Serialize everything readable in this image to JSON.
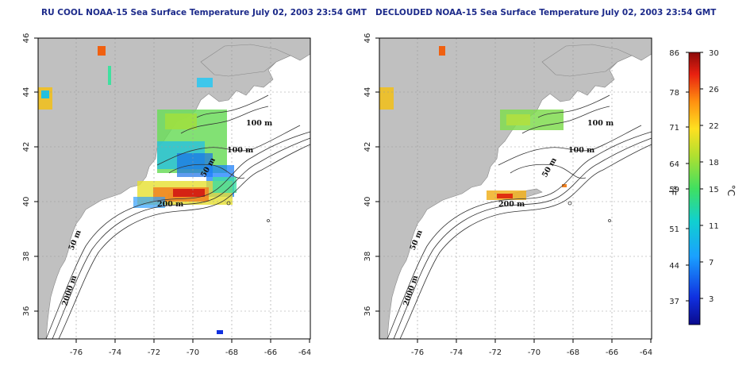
{
  "panels": [
    {
      "title": "RU COOL NOAA-15 Sea Surface Temperature July 02, 2003 23:54 GMT",
      "x_ticks": [
        "-76",
        "-74",
        "-72",
        "-70",
        "-68",
        "-66",
        "-64"
      ],
      "y_ticks": [
        "46",
        "44",
        "42",
        "40",
        "38",
        "36"
      ],
      "contour_labels": [
        "100 m",
        "100 m",
        "50 m",
        "200 m",
        "50 m",
        "2000 m"
      ]
    },
    {
      "title": "DECLOUDED NOAA-15 Sea Surface Temperature July 02, 2003 23:54 GMT",
      "x_ticks": [
        "-76",
        "-74",
        "-72",
        "-70",
        "-68",
        "-66",
        "-64"
      ],
      "y_ticks": [
        "46",
        "44",
        "42",
        "40",
        "38",
        "36"
      ],
      "contour_labels": [
        "100 m",
        "100 m",
        "50 m",
        "200 m",
        "50 m",
        "2000 m"
      ]
    }
  ],
  "colorbar": {
    "fahrenheit_ticks": [
      "86",
      "78",
      "71",
      "64",
      "59",
      "51",
      "44",
      "37"
    ],
    "celsius_ticks": [
      "30",
      "26",
      "22",
      "18",
      "15",
      "11",
      "7",
      "3"
    ],
    "unit_f": "°F",
    "unit_c": "°C"
  },
  "colors": {
    "land": "#c0c0c0",
    "title": "#1c2a8a",
    "grid": "#9a9a9a"
  }
}
